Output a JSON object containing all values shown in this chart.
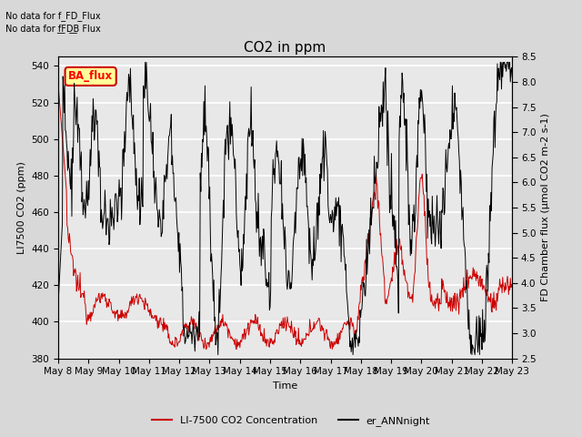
{
  "title": "CO2 in ppm",
  "ylabel_left": "LI7500 CO2 (ppm)",
  "ylabel_right": "FD Chamber flux (μmol CO2 m-2 s-1)",
  "xlabel": "Time",
  "ylim_left": [
    380,
    545
  ],
  "ylim_right": [
    2.5,
    8.5
  ],
  "yticks_left": [
    380,
    400,
    420,
    440,
    460,
    480,
    500,
    520,
    540
  ],
  "yticks_right": [
    2.5,
    3.0,
    3.5,
    4.0,
    4.5,
    5.0,
    5.5,
    6.0,
    6.5,
    7.0,
    7.5,
    8.0,
    8.5
  ],
  "xtick_labels": [
    "May 8",
    "May 9",
    "May 10",
    "May 11",
    "May 12",
    "May 13",
    "May 14",
    "May 15",
    "May 16",
    "May 17",
    "May 18",
    "May 19",
    "May 20",
    "May 21",
    "May 22",
    "May 23"
  ],
  "text_annotations": [
    "No data for f_FD_Flux",
    "No data for f͟FD͟B Flux"
  ],
  "ba_flux_label": "BA_flux",
  "legend_entries": [
    "LI-7500 CO2 Concentration",
    "er_ANNnight"
  ],
  "line1_color": "#cc0000",
  "line2_color": "#000000",
  "background_color": "#d8d8d8",
  "plot_bg_color": "#e8e8e8",
  "ba_flux_bg": "#ffff99",
  "ba_flux_border": "#cc0000",
  "grid_color": "#ffffff",
  "title_fontsize": 11,
  "axis_fontsize": 8,
  "tick_fontsize": 7.5
}
